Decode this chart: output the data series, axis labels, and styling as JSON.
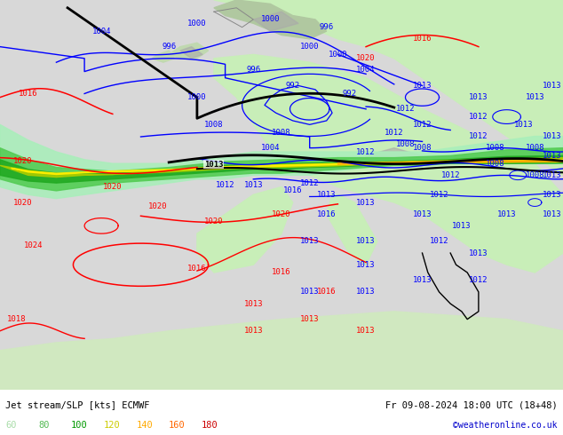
{
  "title_left": "Jet stream/SLP [kts] ECMWF",
  "title_right": "Fr 09-08-2024 18:00 UTC (18+48)",
  "credit": "©weatheronline.co.uk",
  "legend_values": [
    "60",
    "80",
    "100",
    "120",
    "140",
    "160",
    "180"
  ],
  "legend_colors": [
    "#aaddaa",
    "#55bb55",
    "#009900",
    "#cccc00",
    "#ffaa00",
    "#ff6600",
    "#cc0000"
  ],
  "figsize": [
    6.34,
    4.9
  ],
  "dpi": 100,
  "ocean_color": "#d8d8d8",
  "land_color": "#c8eeb8",
  "land_color2": "#b8e8a8",
  "jet_colors": [
    "#aaeebb",
    "#55cc55",
    "#22aa22",
    "#aacc00",
    "#dddd00",
    "#ffee00",
    "#ffcc00",
    "#ffaa00"
  ],
  "credit_color": "#0000cc",
  "bottom_bar_height": 0.105
}
